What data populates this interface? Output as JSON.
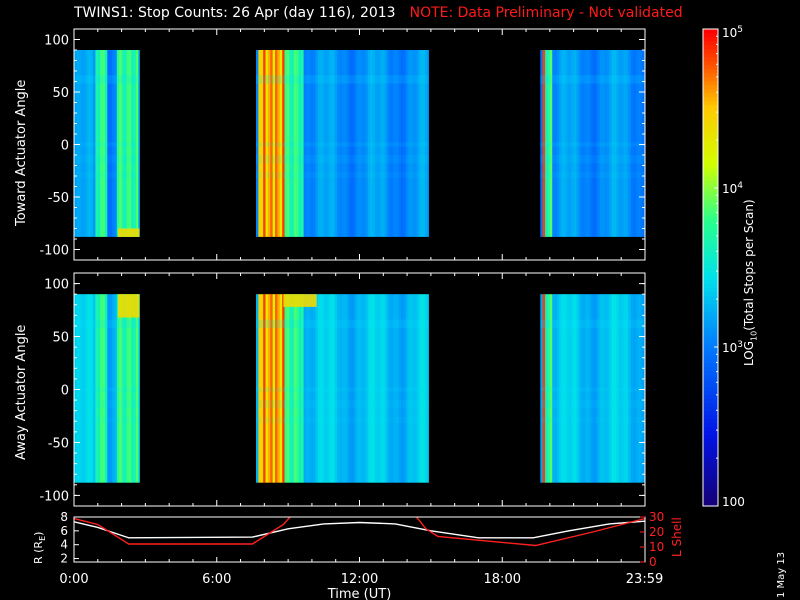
{
  "title": "TWINS1: Stop Counts: 26 Apr (day 116), 2013",
  "note": "NOTE: Data Preliminary - Not validated",
  "date_stamp": "1 May 13",
  "colors": {
    "background": "#000000",
    "note": "#ff1a1a",
    "r_line": "#ffffff",
    "lshell_line": "#ff2020",
    "no_data": "#000000"
  },
  "chart_data": [
    {
      "type": "heatmap",
      "name": "toward",
      "ylabel": "Toward Actuator Angle",
      "ylim": [
        -110,
        110
      ],
      "yticks": [
        -100,
        -50,
        0,
        50,
        100
      ],
      "data_angle_range": [
        -88,
        90
      ],
      "x_hours_range": [
        0,
        24
      ],
      "data_intervals_hours": [
        [
          0,
          2.75
        ],
        [
          7.65,
          14.9
        ],
        [
          19.6,
          24
        ]
      ],
      "features": {
        "hot_columns_hours": [
          [
            7.75,
            8.85
          ],
          [
            19.7,
            19.85
          ]
        ],
        "warm_columns_hours": [
          [
            0.95,
            1.45
          ],
          [
            1.8,
            2.7
          ],
          [
            8.85,
            9.6
          ],
          [
            19.85,
            20.15
          ]
        ],
        "hotspot_hours_angle": [
          [
            1.85,
            2.75,
            -88,
            -80
          ]
        ],
        "baseline_log_counts": 3.1
      }
    },
    {
      "type": "heatmap",
      "name": "away",
      "ylabel": "Away Actuator Angle",
      "ylim": [
        -110,
        110
      ],
      "yticks": [
        -100,
        -50,
        0,
        50,
        100
      ],
      "data_angle_range": [
        -88,
        90
      ],
      "x_hours_range": [
        0,
        24
      ],
      "data_intervals_hours": [
        [
          0,
          2.75
        ],
        [
          7.65,
          14.9
        ],
        [
          19.6,
          24
        ]
      ],
      "features": {
        "hot_columns_hours": [
          [
            7.75,
            8.85
          ],
          [
            19.7,
            19.85
          ]
        ],
        "warm_columns_hours": [
          [
            0.95,
            1.45
          ],
          [
            1.8,
            2.7
          ],
          [
            8.85,
            9.6
          ],
          [
            19.85,
            20.15
          ]
        ],
        "hotspot_hours_angle": [
          [
            1.85,
            2.75,
            68,
            90
          ],
          [
            8.8,
            10.2,
            78,
            90
          ]
        ],
        "baseline_log_counts": 3.3
      }
    },
    {
      "type": "line",
      "name": "orbit",
      "xlabel": "Time (UT)",
      "xticks": [
        "0:00",
        "6:00",
        "12:00",
        "18:00",
        "23:59"
      ],
      "xtick_hours": [
        0,
        6,
        12,
        18,
        23.98
      ],
      "ylabel_left": "R (R",
      "ylabel_left_sub": "E",
      "ylabel_left_tail": ")",
      "ylim_left": [
        1.5,
        8
      ],
      "yticks_left": [
        2,
        4,
        6,
        8
      ],
      "ylabel_right": "L Shell",
      "ylim_right": [
        0,
        30
      ],
      "yticks_right": [
        0,
        10,
        20,
        30
      ],
      "series": [
        {
          "axis": "left",
          "x": [
            0,
            1.0,
            2.3,
            7.5,
            9.0,
            10.5,
            12.0,
            13.5,
            15.0,
            17.0,
            19.3,
            20.8,
            22.5,
            24
          ],
          "values": [
            7.3,
            6.5,
            5.0,
            5.1,
            6.3,
            7.0,
            7.2,
            7.0,
            6.0,
            5.0,
            5.0,
            6.0,
            7.0,
            7.4
          ]
        },
        {
          "axis": "right",
          "x": [
            0,
            1.0,
            2.3,
            7.5,
            8.8,
            9.3,
            14.2,
            14.8,
            15.3,
            19.4,
            21.8,
            24
          ],
          "values": [
            29,
            25,
            12,
            12,
            25,
            34,
            34,
            22,
            17,
            11,
            20,
            29
          ]
        }
      ]
    },
    {
      "type": "colorbar",
      "name": "colorbar",
      "label": "LOG",
      "label_sub": "10",
      "label_tail": "(Total Stops per Scan)",
      "range_log10": [
        2,
        5
      ],
      "tick_values_log10": [
        2,
        3,
        4,
        5
      ],
      "ticks": [
        {
          "text": "100",
          "plain": true
        },
        {
          "base": "10",
          "exp": "3"
        },
        {
          "base": "10",
          "exp": "4"
        },
        {
          "base": "10",
          "exp": "5"
        }
      ]
    }
  ]
}
